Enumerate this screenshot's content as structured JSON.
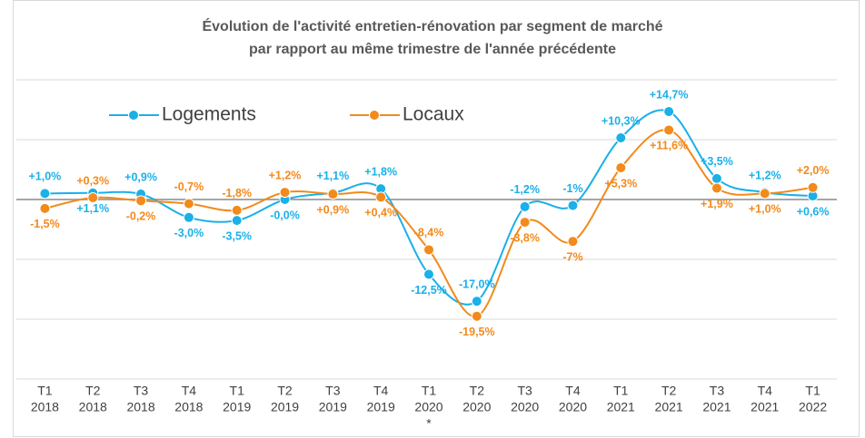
{
  "chart_data": {
    "type": "line",
    "title": [
      "Évolution de l'activité entretien-rénovation par segment de marché",
      "par rapport au même trimestre de l'année précédente"
    ],
    "categories": [
      [
        "T1",
        "2018"
      ],
      [
        "T2",
        "2018"
      ],
      [
        "T3",
        "2018"
      ],
      [
        "T4",
        "2018"
      ],
      [
        "T1",
        "2019"
      ],
      [
        "T2",
        "2019"
      ],
      [
        "T3",
        "2019"
      ],
      [
        "T4",
        "2019"
      ],
      [
        "T1",
        "2020",
        "*"
      ],
      [
        "T2",
        "2020"
      ],
      [
        "T3",
        "2020"
      ],
      [
        "T4",
        "2020"
      ],
      [
        "T1",
        "2021"
      ],
      [
        "T2",
        "2021"
      ],
      [
        "T3",
        "2021"
      ],
      [
        "T4",
        "2021"
      ],
      [
        "T1",
        "2022"
      ]
    ],
    "series": [
      {
        "name": "Logements",
        "color": "#1ab0e8",
        "values": [
          1.0,
          1.1,
          0.9,
          -3.0,
          -3.5,
          0,
          1.1,
          1.8,
          -12.5,
          -17.0,
          -1.2,
          -1,
          10.3,
          14.7,
          3.5,
          1.2,
          0.6
        ],
        "value_labels": [
          "+1,0%",
          "+1,1%",
          "+0,9%",
          "-3,0%",
          "-3,5%",
          "-0,0%",
          "+1,1%",
          "+1,8%",
          "-12,5%",
          "-17,0%",
          "-1,2%",
          "-1%",
          "+10,3%",
          "+14,7%",
          "+3,5%",
          "+1,2%",
          "+0,6%"
        ]
      },
      {
        "name": "Locaux",
        "color": "#f28a1c",
        "values": [
          -1.5,
          0.3,
          -0.2,
          -0.7,
          -1.8,
          1.2,
          0.9,
          0.4,
          -8.4,
          -19.5,
          -3.8,
          -7,
          5.3,
          11.6,
          1.9,
          1.0,
          2.0
        ],
        "value_labels": [
          "-1,5%",
          "+0,3%",
          "-0,2%",
          "-0,7%",
          "-1,8%",
          "+1,2%",
          "+0,9%",
          "+0,4%",
          "-8,4%",
          "-19,5%",
          "-3,8%",
          "-7%",
          "+5,3%",
          "+11,6%",
          "+1,9%",
          "+1,0%",
          "+2,0%"
        ]
      }
    ],
    "ylim": [
      -30,
      20
    ],
    "yticks": [
      -30,
      -20,
      -10,
      0,
      10,
      20
    ],
    "grid": true
  }
}
